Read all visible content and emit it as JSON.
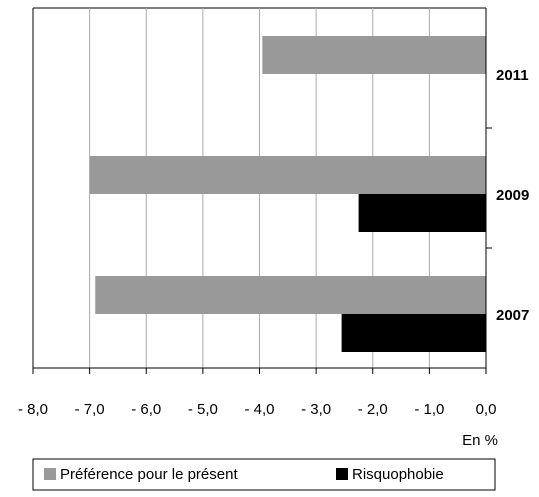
{
  "chart_data": {
    "type": "bar",
    "orientation": "horizontal",
    "categories": [
      "2011",
      "2009",
      "2007"
    ],
    "series": [
      {
        "name": "Préférence pour le présent",
        "color": "#999999",
        "values": [
          -3.95,
          -7.0,
          -6.9
        ]
      },
      {
        "name": "Risquophobie",
        "color": "#000000",
        "values": [
          null,
          -2.25,
          -2.55
        ]
      }
    ],
    "x_label": "En %",
    "xlim": [
      -8,
      0
    ],
    "xticks": [
      {
        "value": -8,
        "label": "- 8,0"
      },
      {
        "value": -7,
        "label": "- 7,0"
      },
      {
        "value": -6,
        "label": "- 6,0"
      },
      {
        "value": -5,
        "label": "- 5,0"
      },
      {
        "value": -4,
        "label": "- 4,0"
      },
      {
        "value": -3,
        "label": "- 3,0"
      },
      {
        "value": -2,
        "label": "- 2,0"
      },
      {
        "value": -1,
        "label": "- 1,0"
      },
      {
        "value": 0,
        "label": "0,0"
      }
    ],
    "grid": true,
    "legend": "bottom"
  }
}
